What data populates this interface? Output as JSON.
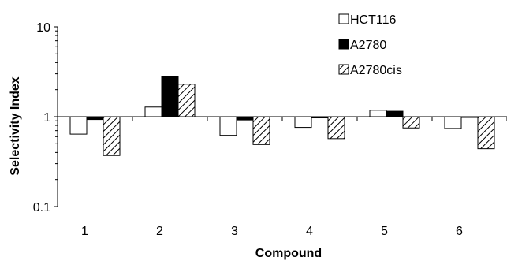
{
  "chart_data": {
    "type": "bar",
    "xlabel": "Compound",
    "ylabel": "Selectivity Index",
    "y_scale": "log",
    "ylim": [
      0.1,
      10
    ],
    "y_ticks": [
      {
        "value": 0.1,
        "label": "0.1"
      },
      {
        "value": 1,
        "label": "1"
      },
      {
        "value": 10,
        "label": "10"
      }
    ],
    "baseline": 1,
    "categories": [
      "1",
      "2",
      "3",
      "4",
      "5",
      "6"
    ],
    "series": [
      {
        "name": "HCT116",
        "style": "white",
        "values": [
          0.64,
          1.28,
          0.62,
          0.76,
          1.18,
          0.74
        ]
      },
      {
        "name": "A2780",
        "style": "black",
        "values": [
          0.93,
          2.8,
          0.92,
          0.97,
          1.15,
          0.99
        ]
      },
      {
        "name": "A2780cis",
        "style": "hatched",
        "values": [
          0.37,
          2.3,
          0.49,
          0.57,
          0.75,
          0.44
        ]
      }
    ],
    "legend_position": "top-right",
    "grid": false
  },
  "colors": {
    "axis": "#000000",
    "white_fill": "#ffffff",
    "black_fill": "#000000",
    "hatch_line": "#000000",
    "hatch_bg": "#ffffff"
  }
}
